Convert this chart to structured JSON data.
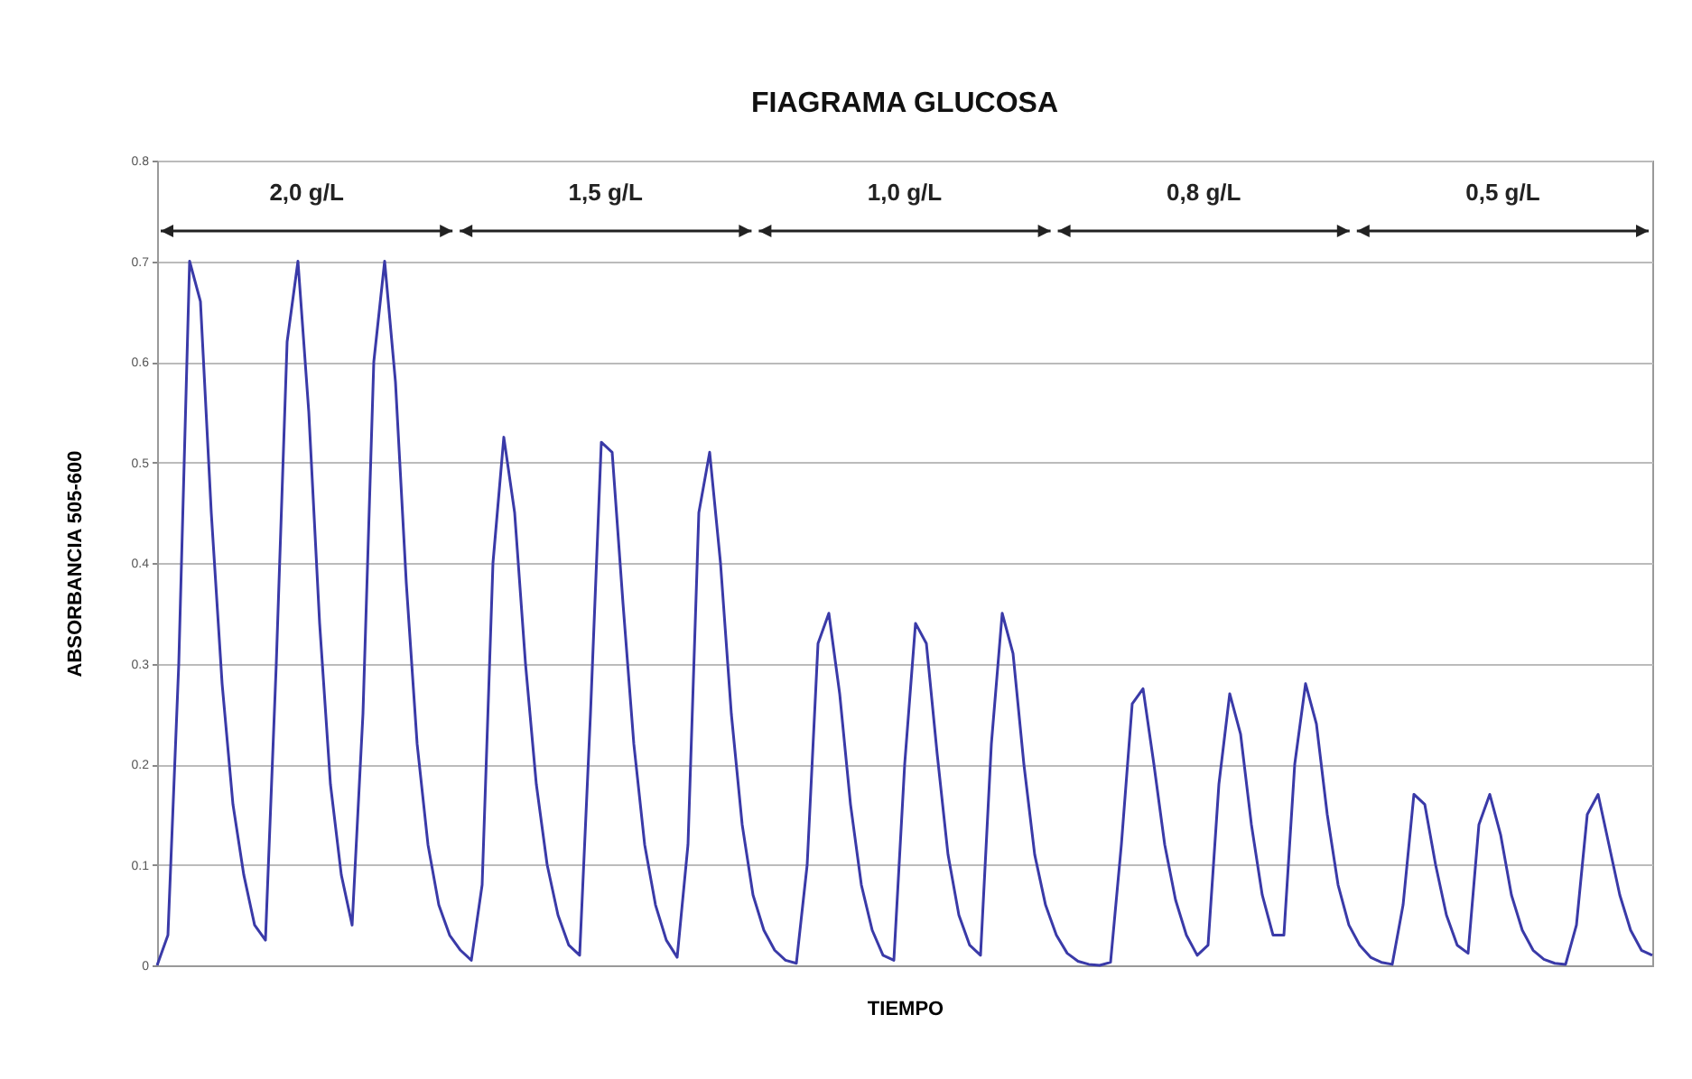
{
  "chart_data": {
    "type": "line",
    "title": "FIAGRAMA GLUCOSA",
    "xlabel": "TIEMPO",
    "ylabel": "ABSORBANCIA 505-600",
    "annotations": [
      "2,0 g/L",
      "1,5 g/L",
      "1,0 g/L",
      "0,8 g/L",
      "0,5 g/L"
    ],
    "categories": [
      null,
      null,
      null,
      null,
      null,
      null,
      null,
      null,
      null,
      null,
      null,
      null,
      null,
      null,
      null,
      null,
      null,
      null,
      null,
      null,
      null,
      null,
      null,
      null,
      null,
      null,
      null,
      null,
      null,
      null,
      null,
      null,
      null,
      null,
      null,
      null,
      null,
      null,
      null,
      null,
      null,
      null,
      null,
      null,
      null,
      null,
      null,
      null,
      null,
      null,
      null,
      null,
      null,
      null,
      null,
      null,
      null,
      null,
      null,
      null,
      null,
      null,
      null,
      null,
      null,
      null,
      null,
      null,
      null,
      null,
      null,
      null,
      null,
      null,
      null,
      null,
      null,
      null,
      null,
      null,
      null,
      null,
      null,
      null,
      null,
      null,
      null,
      null,
      null,
      null,
      null,
      null,
      null,
      null,
      null,
      null,
      null,
      null,
      null,
      null,
      null,
      null,
      null,
      null,
      null,
      null,
      null,
      null,
      null,
      null,
      null,
      null,
      null,
      null,
      null,
      null,
      null,
      null,
      null,
      null,
      null,
      null,
      null,
      null,
      null,
      null,
      null,
      null,
      null,
      null,
      null,
      null,
      null,
      null,
      null,
      null,
      null,
      null,
      null
    ],
    "values": [
      0,
      0.03,
      0.3,
      0.7,
      0.66,
      0.45,
      0.28,
      0.16,
      0.09,
      0.04,
      0.025,
      0.3,
      0.62,
      0.7,
      0.55,
      0.34,
      0.18,
      0.09,
      0.04,
      0.25,
      0.6,
      0.7,
      0.58,
      0.38,
      0.22,
      0.12,
      0.06,
      0.03,
      0.015,
      0.005,
      0.08,
      0.4,
      0.525,
      0.45,
      0.3,
      0.18,
      0.1,
      0.05,
      0.02,
      0.01,
      0.25,
      0.52,
      0.51,
      0.36,
      0.22,
      0.12,
      0.06,
      0.025,
      0.008,
      0.12,
      0.45,
      0.51,
      0.4,
      0.25,
      0.14,
      0.07,
      0.035,
      0.015,
      0.005,
      0.002,
      0.1,
      0.32,
      0.35,
      0.27,
      0.16,
      0.08,
      0.035,
      0.01,
      0.005,
      0.2,
      0.34,
      0.32,
      0.21,
      0.11,
      0.05,
      0.02,
      0.01,
      0.22,
      0.35,
      0.31,
      0.2,
      0.11,
      0.06,
      0.03,
      0.012,
      0.004,
      0.001,
      0,
      0.003,
      0.12,
      0.26,
      0.275,
      0.2,
      0.12,
      0.065,
      0.03,
      0.01,
      0.02,
      0.18,
      0.27,
      0.23,
      0.14,
      0.07,
      0.03,
      0.03,
      0.2,
      0.28,
      0.24,
      0.15,
      0.08,
      0.04,
      0.02,
      0.008,
      0.003,
      0.001,
      0.06,
      0.17,
      0.16,
      0.1,
      0.05,
      0.02,
      0.012,
      0.14,
      0.17,
      0.13,
      0.07,
      0.035,
      0.015,
      0.006,
      0.002,
      0.001,
      0.04,
      0.15,
      0.17,
      0.12,
      0.07,
      0.035,
      0.015,
      0.01
    ],
    "color": "#3a3aa8",
    "ylim": [
      0,
      0.8
    ],
    "yticks": [
      0,
      0.1,
      0.2,
      0.3,
      0.4,
      0.5,
      0.6,
      0.7,
      0.8
    ],
    "grid": "y",
    "tick_labels": "y"
  }
}
